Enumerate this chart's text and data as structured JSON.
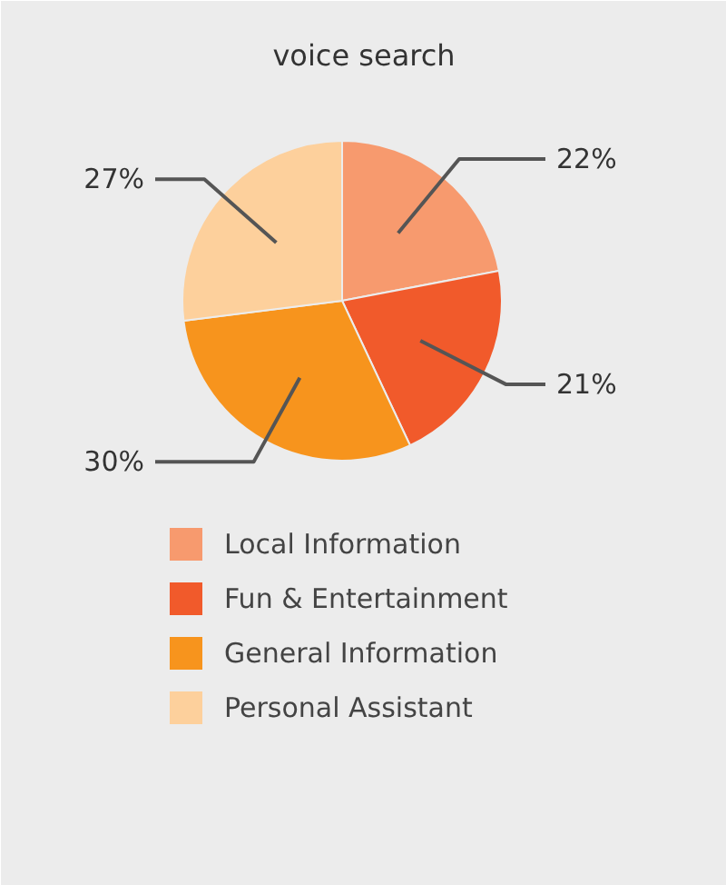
{
  "chart_data": {
    "type": "pie",
    "title": "voice search",
    "categories": [
      "Local Information",
      "Fun & Entertainment",
      "General Information",
      "Personal Assistant"
    ],
    "values": [
      22,
      21,
      30,
      27
    ],
    "colors": [
      "#f79a6e",
      "#f15a2b",
      "#f7941d",
      "#fdd09c"
    ],
    "value_labels": [
      "22%",
      "21%",
      "30%",
      "27%"
    ],
    "legend": "bottom"
  }
}
